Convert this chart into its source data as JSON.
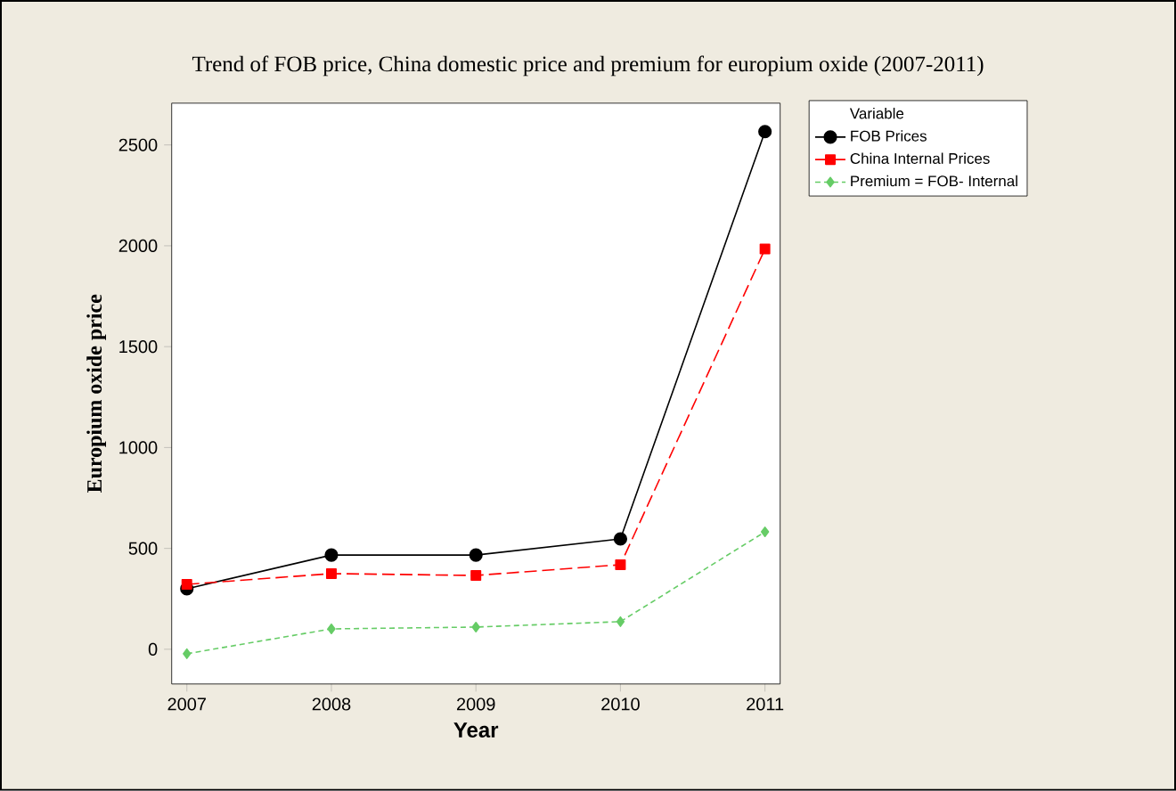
{
  "chart_data": {
    "type": "line",
    "title": "Trend of FOB price, China domestic price and premium for europium oxide (2007-2011)",
    "xlabel": "Year",
    "ylabel": "Europium oxide price",
    "legend_title": "Variable",
    "legend": "top right",
    "x": [
      2007,
      2008,
      2009,
      2010,
      2011
    ],
    "xlim": [
      2006.895,
      2011.105
    ],
    "xticks": [
      2007,
      2008,
      2009,
      2010,
      2011
    ],
    "ylim": [
      -172,
      2707
    ],
    "yticks": [
      0,
      500,
      1000,
      1500,
      2000,
      2500
    ],
    "grid": false,
    "series": [
      {
        "name": "FOB Prices",
        "color": "#000000",
        "marker": "circle",
        "line_style": "solid",
        "values": [
          300,
          467,
          467,
          547,
          2566
        ]
      },
      {
        "name": "China Internal Prices",
        "color": "#ff0000",
        "marker": "square",
        "line_style": "dashed",
        "values": [
          322,
          375,
          366,
          419,
          1984
        ]
      },
      {
        "name": "Premium = FOB- Internal",
        "color": "#66cc66",
        "marker": "diamond",
        "line_style": "dotted",
        "values": [
          -22,
          101,
          110,
          137,
          582
        ]
      }
    ]
  }
}
